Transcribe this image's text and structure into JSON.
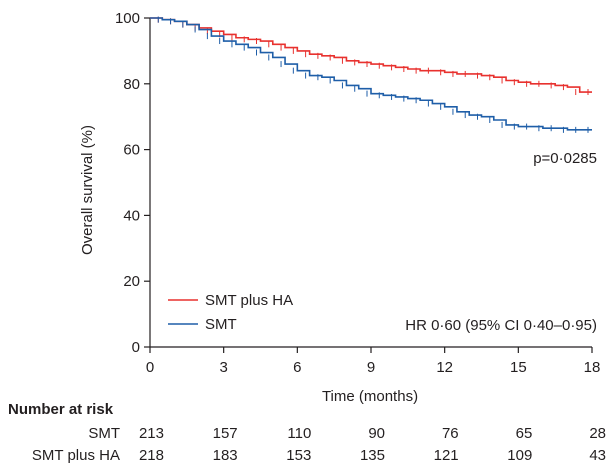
{
  "chart_data": {
    "type": "line",
    "subtype": "kaplan-meier",
    "ylabel": "Overall survival (%)",
    "xlabel": "Time (months)",
    "xlim": [
      0,
      18
    ],
    "ylim": [
      0,
      100
    ],
    "xticks": [
      0,
      3,
      6,
      9,
      12,
      15,
      18
    ],
    "yticks": [
      0,
      20,
      40,
      60,
      80,
      100
    ],
    "p_value_label": "p=0·0285",
    "hr_label": "HR 0·60 (95% CI 0·40–0·95)",
    "legend_position": "bottom-left",
    "series": [
      {
        "name": "SMT plus HA",
        "color": "#e8312e",
        "x": [
          0,
          0.5,
          1,
          1.5,
          2,
          2.5,
          3,
          3.5,
          4,
          4.5,
          5,
          5.5,
          6,
          6.5,
          7,
          7.5,
          8,
          8.5,
          9,
          9.5,
          10,
          10.5,
          11,
          11.5,
          12,
          12.5,
          13,
          13.5,
          14,
          14.5,
          15,
          15.5,
          16,
          16.5,
          17,
          17.5,
          18
        ],
        "y": [
          100,
          99.5,
          99,
          98,
          97,
          96,
          95,
          94,
          93.5,
          93,
          92,
          91,
          90,
          89,
          88.5,
          88,
          87,
          86.5,
          86,
          85.5,
          85,
          84.5,
          84,
          84,
          83.5,
          83,
          83,
          82.5,
          82,
          81,
          80.5,
          80,
          80,
          79.5,
          79,
          77.5,
          77.5
        ]
      },
      {
        "name": "SMT",
        "color": "#1e5ea8",
        "x": [
          0,
          0.5,
          1,
          1.5,
          2,
          2.5,
          3,
          3.5,
          4,
          4.5,
          5,
          5.5,
          6,
          6.5,
          7,
          7.5,
          8,
          8.5,
          9,
          9.5,
          10,
          10.5,
          11,
          11.5,
          12,
          12.5,
          13,
          13.5,
          14,
          14.5,
          15,
          15.5,
          16,
          16.5,
          17,
          17.5,
          18
        ],
        "y": [
          100,
          99.5,
          99,
          98,
          96.5,
          94.5,
          93,
          92,
          91,
          89.5,
          88,
          86,
          84,
          82.5,
          82,
          81,
          79.5,
          78.5,
          77,
          76.5,
          76,
          75.5,
          75,
          74,
          73,
          71.5,
          70.5,
          70,
          69,
          67.5,
          67,
          67,
          66.5,
          66.5,
          66,
          66,
          66
        ]
      }
    ]
  },
  "risk_table": {
    "header": "Number at risk",
    "timepoints": [
      0,
      3,
      6,
      9,
      12,
      15,
      18
    ],
    "rows": [
      {
        "label": "SMT",
        "counts": [
          "213",
          "157",
          "110",
          "90",
          "76",
          "65",
          "28"
        ]
      },
      {
        "label": "SMT plus HA",
        "counts": [
          "218",
          "183",
          "153",
          "135",
          "121",
          "109",
          "43"
        ]
      }
    ]
  }
}
